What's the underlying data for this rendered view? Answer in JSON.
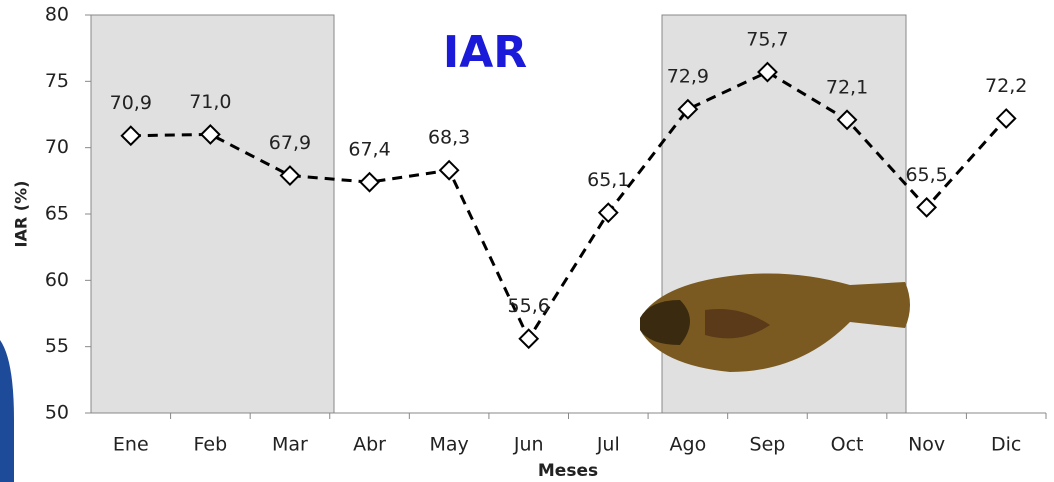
{
  "chart_data": {
    "type": "line",
    "title": "IAR",
    "y_label": "IAR (%)",
    "x_label": "Meses",
    "categories": [
      "Ene",
      "Feb",
      "Mar",
      "Abr",
      "May",
      "Jun",
      "Jul",
      "Ago",
      "Sep",
      "Oct",
      "Nov",
      "Dic"
    ],
    "values": [
      70.9,
      71.0,
      67.9,
      67.4,
      68.3,
      55.6,
      65.1,
      72.9,
      75.7,
      72.1,
      65.5,
      72.2
    ],
    "value_labels": [
      "70,9",
      "71,0",
      "67,9",
      "67,4",
      "68,3",
      "55,6",
      "65,1",
      "72,9",
      "75,7",
      "72,1",
      "65,5",
      "72,2"
    ],
    "color": "#000000",
    "ylim": [
      50,
      80
    ],
    "yticks": [
      50,
      55,
      60,
      65,
      70,
      75,
      80
    ]
  }
}
